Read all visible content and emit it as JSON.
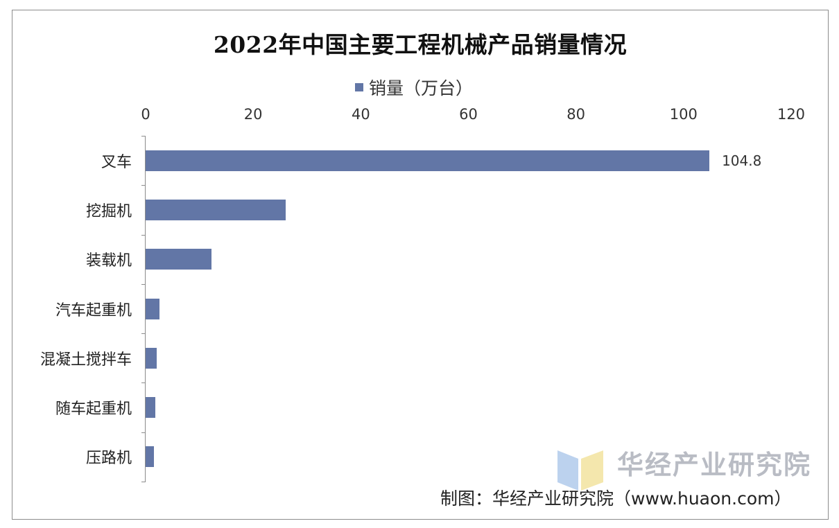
{
  "chart_data": {
    "type": "bar",
    "orientation": "horizontal",
    "title": "2022年中国主要工程机械产品销量情况",
    "categories": [
      "叉车",
      "挖掘机",
      "装载机",
      "汽车起重机",
      "混凝土搅拌车",
      "随车起重机",
      "压路机"
    ],
    "series": [
      {
        "name": "销量（万台）",
        "values": [
          104.8,
          26.1,
          12.3,
          2.6,
          2.1,
          1.8,
          1.5
        ]
      }
    ],
    "data_labels": {
      "0": "104.8"
    },
    "xlim": [
      0,
      120
    ],
    "x_ticks": [
      "0",
      "20",
      "40",
      "60",
      "80",
      "100",
      "120"
    ],
    "grid": false,
    "legend_position": "top",
    "colors": {
      "bar": "#6276a6"
    }
  },
  "watermark": {
    "text": "华经产业研究院"
  },
  "credit": "制图：华经产业研究院（www.huaon.com）"
}
